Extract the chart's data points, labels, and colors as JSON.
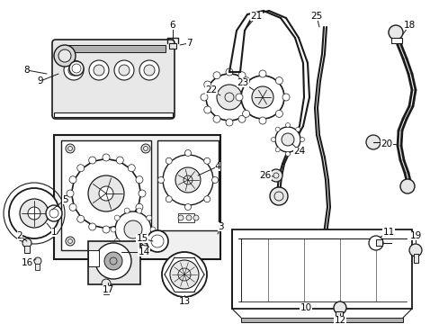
{
  "bg_color": "#ffffff",
  "fig_width": 4.89,
  "fig_height": 3.6,
  "dpi": 100,
  "line_color": "#1a1a1a",
  "text_color": "#000000",
  "label_fontsize": 7.5,
  "gray_fill": "#d8d8d8",
  "light_gray": "#e8e8e8",
  "mid_gray": "#b0b0b0"
}
